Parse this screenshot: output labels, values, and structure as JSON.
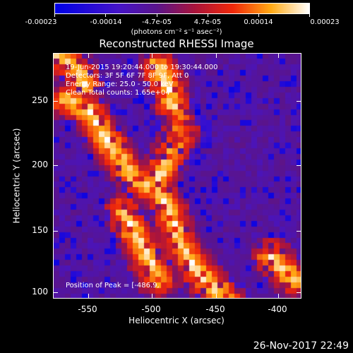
{
  "colorbar": {
    "tick_labels": [
      "-0.00023",
      "-0.00014",
      "-4.7e-05",
      "4.7e-05",
      "0.00014",
      "0.00023"
    ],
    "units": "(photons cm⁻² s⁻¹ asec⁻²)"
  },
  "title": "Reconstructed RHESSI Image",
  "info": {
    "time_range": "19-Jun-2015 19:20:44.000 to 19:30:44.000",
    "detectors": "Detectors: 3F 5F 6F 7F 8F 9F, Att 0",
    "energy": "Energy Range: 25.0 - 50.0 keV",
    "counts": "Clean   Total counts: 1.65e+04",
    "peak": "Position of Peak = [-486.9,"
  },
  "axes": {
    "xlabel": "Heliocentric X (arcsec)",
    "ylabel": "Heliocentric Y (arcsec)",
    "xticks": [
      "-550",
      "-500",
      "-450",
      "-400"
    ],
    "yticks": [
      "250",
      "200",
      "150",
      "100"
    ]
  },
  "footer_date": "26-Nov-2017 22:49"
}
